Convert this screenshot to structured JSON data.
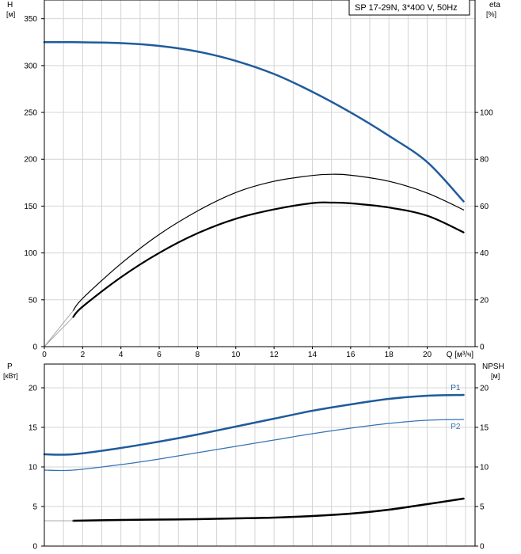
{
  "legend": "SP 17-29N, 3*400 V, 50Hz",
  "colors": {
    "blue": "#1f5b9c",
    "blue_light": "#3474b4",
    "black": "#000000",
    "gray": "#a8a8a8",
    "grid": "#d4d4d4"
  },
  "chart_data": [
    {
      "type": "line",
      "title": "",
      "xlabel": "Q [м³/ч]",
      "x_ticks": [
        "0",
        "2",
        "4",
        "6",
        "8",
        "10",
        "12",
        "14",
        "16",
        "18",
        "20"
      ],
      "xlim": [
        0,
        22.5
      ],
      "left_axis": {
        "label": "H",
        "unit": "[м]",
        "ylim": [
          0,
          370
        ],
        "ticks": [
          "0",
          "50",
          "100",
          "150",
          "200",
          "250",
          "300",
          "350"
        ]
      },
      "right_axis": {
        "label": "eta",
        "unit": "[%]",
        "ylim": [
          0,
          148
        ],
        "ticks": [
          "0",
          "20",
          "40",
          "60",
          "80",
          "100"
        ]
      },
      "series": [
        {
          "axis": "left",
          "color": "blue",
          "width": 2.5,
          "x": [
            0,
            1.5,
            4,
            6,
            8,
            10,
            12,
            14,
            16,
            18,
            20,
            21.9
          ],
          "values": [
            325,
            325,
            324,
            321,
            315,
            305,
            291,
            272,
            250,
            225,
            197,
            155
          ]
        },
        {
          "axis": "right",
          "color": "black",
          "width": 2.2,
          "x": [
            1.5,
            2,
            4,
            6,
            8,
            10,
            12,
            14,
            15,
            16,
            18,
            20,
            21.9
          ],
          "values": [
            12.6,
            17.1,
            29.6,
            40.0,
            48.4,
            54.6,
            58.6,
            61.3,
            61.5,
            61.2,
            59.4,
            55.9,
            48.8
          ]
        },
        {
          "axis": "right",
          "color": "black",
          "width": 1.2,
          "x": [
            1.5,
            2,
            4,
            6,
            8,
            10,
            12,
            14,
            15,
            16,
            18,
            20,
            21.9
          ],
          "values": [
            15.3,
            20.6,
            35.4,
            47.9,
            57.9,
            65.8,
            70.6,
            73.1,
            73.6,
            73.2,
            70.6,
            65.6,
            58.4
          ]
        },
        {
          "axis": "right",
          "color": "gray",
          "width": 1,
          "x": [
            0,
            1.5
          ],
          "values": [
            0,
            15.3
          ]
        },
        {
          "axis": "right",
          "color": "gray",
          "width": 1,
          "x": [
            0,
            1.5
          ],
          "values": [
            0,
            12.6
          ]
        }
      ]
    },
    {
      "type": "line",
      "title": "",
      "xlabel": "",
      "xlim": [
        0,
        22.5
      ],
      "left_axis": {
        "label": "P",
        "unit": "[кВт]",
        "ylim": [
          0,
          23
        ],
        "ticks": [
          "0",
          "5",
          "10",
          "15",
          "20"
        ]
      },
      "right_axis": {
        "label": "NPSH",
        "unit": "[м]",
        "ylim": [
          0,
          23
        ],
        "ticks": [
          "0",
          "5",
          "10",
          "15",
          "20"
        ]
      },
      "series": [
        {
          "name": "P1",
          "axis": "left",
          "color": "blue",
          "width": 2.5,
          "x": [
            0,
            1.5,
            4,
            6,
            8,
            10,
            12,
            14,
            16,
            18,
            20,
            21.9
          ],
          "values": [
            11.6,
            11.6,
            12.4,
            13.2,
            14.1,
            15.1,
            16.1,
            17.1,
            17.9,
            18.6,
            19.0,
            19.1
          ]
        },
        {
          "name": "P2",
          "axis": "left",
          "color": "blue_light",
          "width": 1.3,
          "x": [
            0,
            1.5,
            4,
            6,
            8,
            10,
            12,
            14,
            16,
            18,
            20,
            21.9
          ],
          "values": [
            9.6,
            9.6,
            10.3,
            11.0,
            11.8,
            12.6,
            13.4,
            14.2,
            14.9,
            15.5,
            15.9,
            16.0
          ]
        },
        {
          "axis": "right",
          "color": "black",
          "width": 2.5,
          "x": [
            1.5,
            4,
            6,
            8,
            10,
            12,
            14,
            16,
            18,
            20,
            21.9
          ],
          "values": [
            3.2,
            3.3,
            3.35,
            3.4,
            3.5,
            3.6,
            3.8,
            4.1,
            4.6,
            5.3,
            6.0
          ]
        },
        {
          "axis": "right",
          "color": "gray",
          "width": 1,
          "x": [
            0,
            1.5
          ],
          "values": [
            3.2,
            3.2
          ]
        }
      ]
    }
  ]
}
